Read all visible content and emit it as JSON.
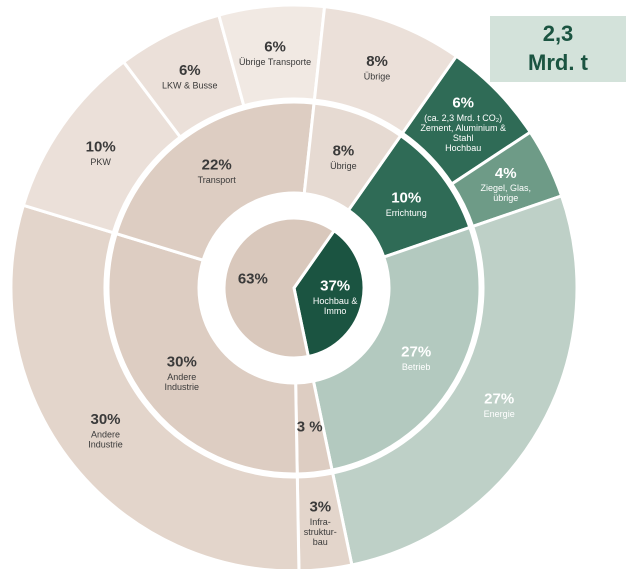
{
  "chart_data": {
    "type": "sunburst",
    "box": [
      "2,3",
      "Mrd. t"
    ],
    "rings": [
      {
        "segments": [
          {
            "label": [
              "Hochbau &",
              "Immo"
            ],
            "value": 37,
            "value_label": "37%",
            "color": "#1b5441",
            "label_color": "#ffffff"
          },
          {
            "label": [],
            "value": 63,
            "value_label": "63%",
            "color": "#d9c8bc",
            "label_color": "#3a3a3a"
          }
        ]
      },
      {
        "segments": [
          {
            "label": [
              "Errichtung"
            ],
            "value": 10,
            "value_label": "10%",
            "color": "#2f6b56",
            "label_color": "#ffffff"
          },
          {
            "label": [
              "Betrieb"
            ],
            "value": 27,
            "value_label": "27%",
            "color": "#b3c9bf",
            "label_color": "#ffffff"
          },
          {
            "label": [],
            "value": 3,
            "value_label": "3 %",
            "color": "#ddcdc2",
            "label_color": "#3a3a3a"
          },
          {
            "label": [
              "Andere",
              "Industrie"
            ],
            "value": 30,
            "value_label": "30%",
            "color": "#ddcdc2",
            "label_color": "#3a3a3a"
          },
          {
            "label": [
              "Transport"
            ],
            "value": 22,
            "value_label": "22%",
            "color": "#ddcdc2",
            "label_color": "#3a3a3a"
          },
          {
            "label": [
              "Übrige"
            ],
            "value": 8,
            "value_label": "8%",
            "color": "#e6dad2",
            "label_color": "#3a3a3a"
          }
        ]
      },
      {
        "segments": [
          {
            "label": [
              "(ca. 2,3 Mrd. t CO₂)",
              "Zement, Aluminium &",
              "Stahl",
              "Hochbau"
            ],
            "value": 6,
            "value_label": "6%",
            "color": "#2f6b56",
            "label_color": "#ffffff"
          },
          {
            "label": [
              "Ziegel, Glas,",
              "übrige"
            ],
            "value": 4,
            "value_label": "4%",
            "color": "#6e9b87",
            "label_color": "#ffffff"
          },
          {
            "label": [
              "Energie"
            ],
            "value": 27,
            "value_label": "27%",
            "color": "#bed0c7",
            "label_color": "#ffffff"
          },
          {
            "label": [
              "Infra-",
              "struktur-",
              "bau"
            ],
            "value": 3,
            "value_label": "3%",
            "color": "#e3d5cb",
            "label_color": "#3a3a3a"
          },
          {
            "label": [
              "Andere",
              "Industrie"
            ],
            "value": 30,
            "value_label": "30%",
            "color": "#e3d5cb",
            "label_color": "#3a3a3a"
          },
          {
            "label": [
              "PKW"
            ],
            "value": 10,
            "value_label": "10%",
            "color": "#ebe0d9",
            "label_color": "#3a3a3a"
          },
          {
            "label": [
              "LKW & Busse"
            ],
            "value": 6,
            "value_label": "6%",
            "color": "#ebe0d9",
            "label_color": "#3a3a3a"
          },
          {
            "label": [
              "Übrige Transporte"
            ],
            "value": 6,
            "value_label": "6%",
            "color": "#f1e9e3",
            "label_color": "#3a3a3a"
          },
          {
            "label": [
              "Übrige"
            ],
            "value": 8,
            "value_label": "8%",
            "color": "#ebe0d9",
            "label_color": "#3a3a3a"
          }
        ]
      }
    ]
  }
}
